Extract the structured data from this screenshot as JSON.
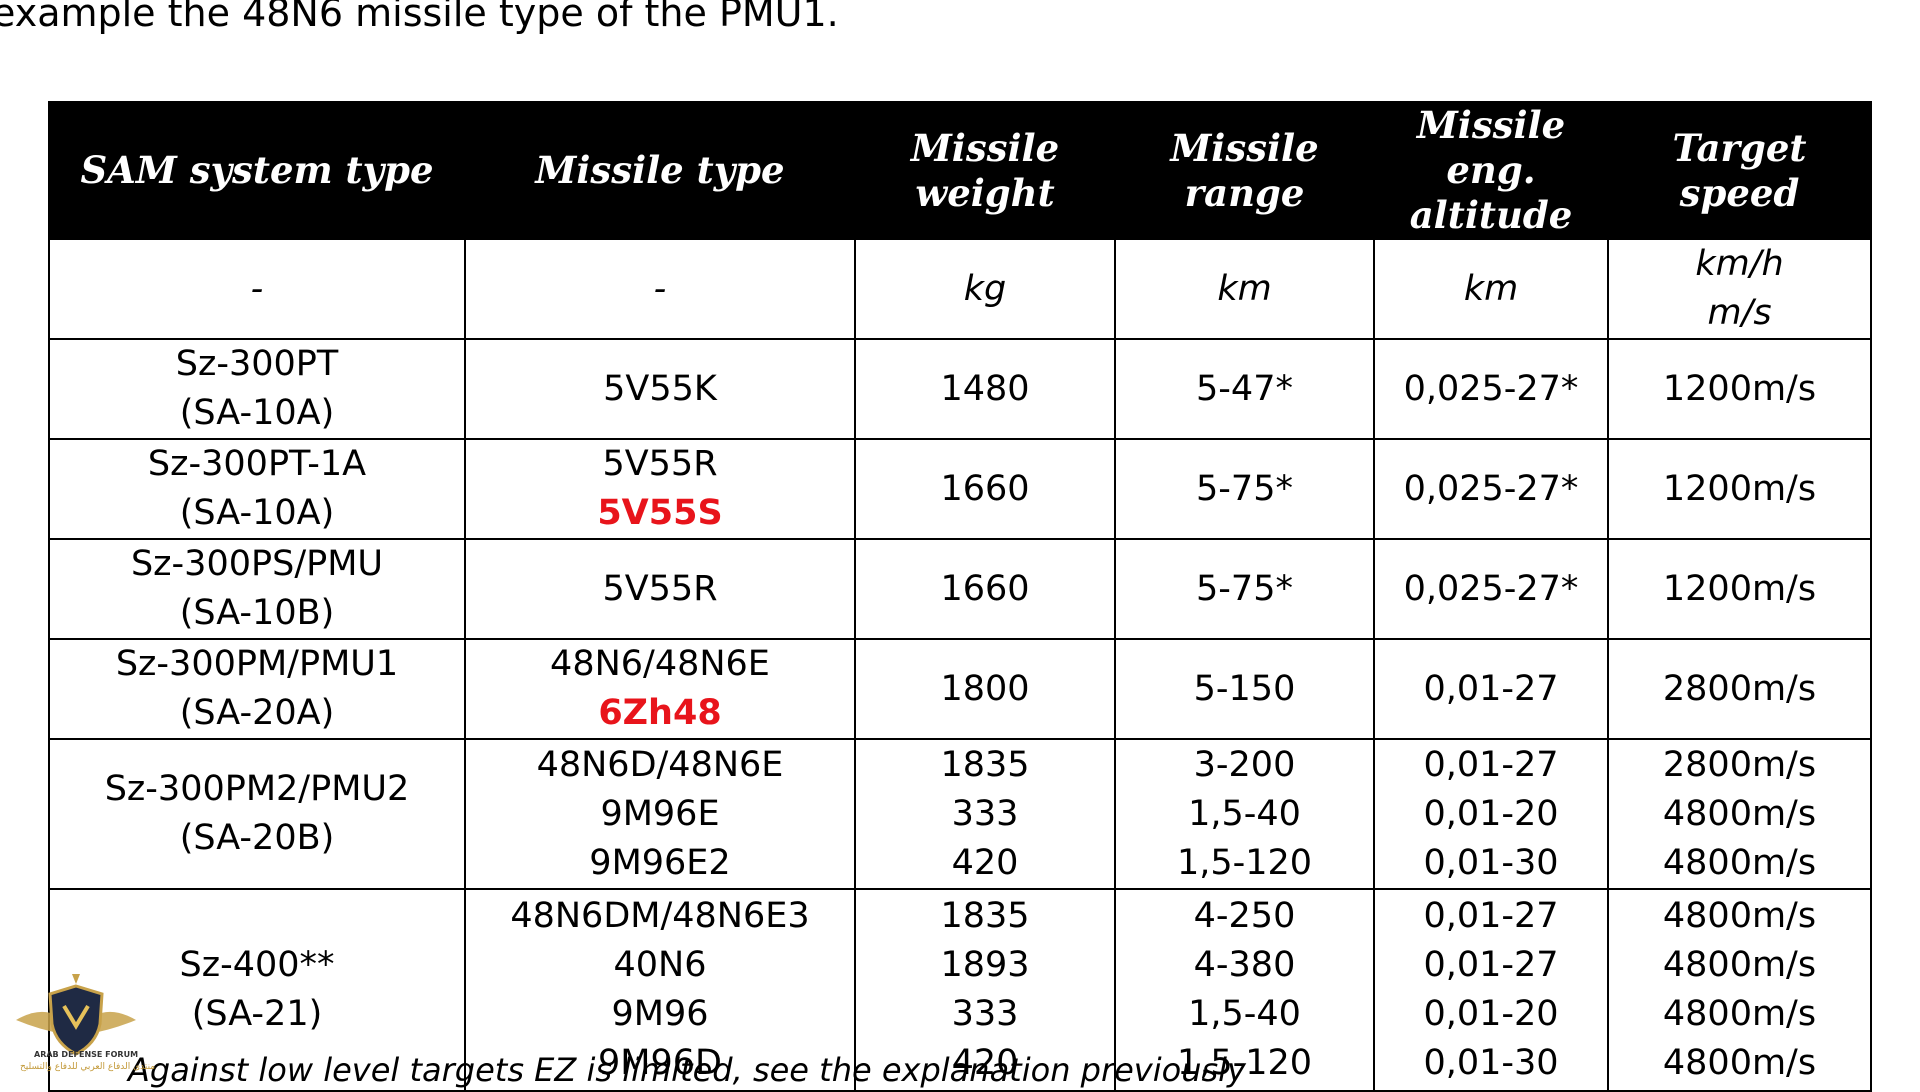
{
  "intro_text": "example the 48N6 missile type of the PMU1.",
  "table": {
    "headers": [
      "SAM system type",
      "Missile type",
      "Missile weight",
      "Missile range",
      "Missile eng. altitude",
      "Target speed"
    ],
    "units": {
      "system": "-",
      "missile": "-",
      "weight": "kg",
      "range": "km",
      "altitude": "km",
      "speed": [
        "km/h",
        "m/s"
      ]
    },
    "rows": [
      {
        "system": [
          "Sz-300PT",
          "(SA-10A)"
        ],
        "missiles": [
          "5V55K"
        ],
        "missile_highlight": "",
        "weight": [
          "1480"
        ],
        "range": [
          "5-47*"
        ],
        "altitude": [
          "0,025-27*"
        ],
        "speed": [
          "1200m/s"
        ]
      },
      {
        "system": [
          "Sz-300PT-1A",
          "(SA-10A)"
        ],
        "missiles": [
          "5V55R"
        ],
        "missile_highlight": "5V55S",
        "weight": [
          "1660"
        ],
        "range": [
          "5-75*"
        ],
        "altitude": [
          "0,025-27*"
        ],
        "speed": [
          "1200m/s"
        ]
      },
      {
        "system": [
          "Sz-300PS/PMU",
          "(SA-10B)"
        ],
        "missiles": [
          "5V55R"
        ],
        "missile_highlight": "",
        "weight": [
          "1660"
        ],
        "range": [
          "5-75*"
        ],
        "altitude": [
          "0,025-27*"
        ],
        "speed": [
          "1200m/s"
        ]
      },
      {
        "system": [
          "Sz-300PM/PMU1",
          "(SA-20A)"
        ],
        "missiles": [
          "48N6/48N6E"
        ],
        "missile_highlight": "6Zh48",
        "weight": [
          "1800"
        ],
        "range": [
          "5-150"
        ],
        "altitude": [
          "0,01-27"
        ],
        "speed": [
          "2800m/s"
        ]
      },
      {
        "system": [
          "Sz-300PM2/PMU2",
          "(SA-20B)"
        ],
        "missiles": [
          "48N6D/48N6E",
          "9M96E",
          "9M96E2"
        ],
        "missile_highlight": "",
        "weight": [
          "1835",
          "333",
          "420"
        ],
        "range": [
          "3-200",
          "1,5-40",
          "1,5-120"
        ],
        "altitude": [
          "0,01-27",
          "0,01-20",
          "0,01-30"
        ],
        "speed": [
          "2800m/s",
          "4800m/s",
          "4800m/s"
        ]
      },
      {
        "system": [
          "Sz-400**",
          "(SA-21)"
        ],
        "missiles": [
          "48N6DM/48N6E3",
          "40N6",
          "9M96",
          "9M96D"
        ],
        "missile_highlight": "",
        "weight": [
          "1835",
          "1893",
          "333",
          "420"
        ],
        "range": [
          "4-250",
          "4-380",
          "1,5-40",
          "1,5-120"
        ],
        "altitude": [
          "0,01-27",
          "0,01-27",
          "0,01-20",
          "0,01-30"
        ],
        "speed": [
          "4800m/s",
          "4800m/s",
          "4800m/s",
          "4800m/s"
        ]
      }
    ]
  },
  "footnote": "Against low level targets EZ is limited, see the explanation previously",
  "watermark": {
    "logo": "arab-defense-forum-shield-eagle",
    "text_en": "ARAB DEFENSE FORUM",
    "text_ar": "منتدى الدفاع العربي للدفاع والتسليح",
    "accent_color": "#c39a3a"
  },
  "colors": {
    "header_bg": "#000000",
    "header_text": "#ffffff",
    "highlight": "#e8141b"
  }
}
